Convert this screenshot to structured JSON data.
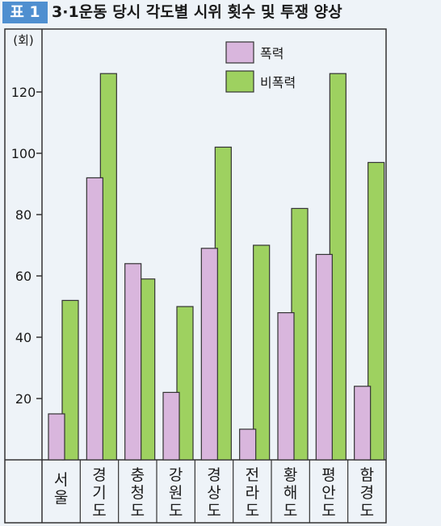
{
  "header": {
    "badge": "표 1",
    "title": "3·1운동 당시 각도별 시위 횟수 및 투쟁 양상"
  },
  "colors": {
    "violent": "#d9b6dd",
    "nonviolent": "#9ed160",
    "axis": "#333333",
    "background": "#eef3f8"
  },
  "chart_data": {
    "type": "bar",
    "title": "3·1운동 당시 각도별 시위 횟수 및 투쟁 양상",
    "ylabel": "(회)",
    "ylim": [
      0,
      140
    ],
    "yticks": [
      20,
      40,
      60,
      80,
      100,
      120
    ],
    "grid": false,
    "legend_position": "top-right",
    "categories": [
      "서울",
      "경기도",
      "충청도",
      "강원도",
      "경상도",
      "전라도",
      "황해도",
      "평안도",
      "함경도"
    ],
    "series": [
      {
        "name": "폭력",
        "values": [
          15,
          92,
          64,
          22,
          69,
          10,
          48,
          67,
          24
        ]
      },
      {
        "name": "비폭력",
        "values": [
          52,
          126,
          59,
          50,
          102,
          70,
          82,
          126,
          97
        ]
      }
    ]
  }
}
